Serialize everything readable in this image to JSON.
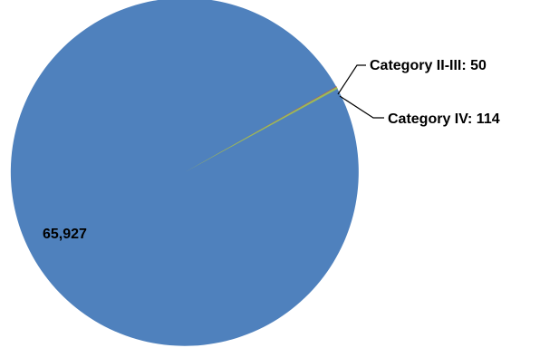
{
  "chart_data": {
    "type": "pie",
    "slices": [
      {
        "label": "",
        "value": 65927,
        "display": "65,927",
        "color": "#4F81BD"
      },
      {
        "label": "Category II-III",
        "value": 50,
        "display": "Category II-III: 50",
        "color": "#C0504D"
      },
      {
        "label": "Category IV",
        "value": 114,
        "display": "Category IV: 114",
        "color": "#9BBB59"
      }
    ],
    "legend": "none"
  }
}
